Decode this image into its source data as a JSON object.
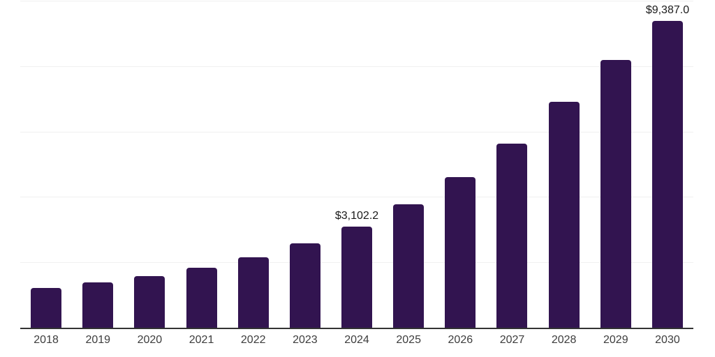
{
  "chart_data": {
    "type": "bar",
    "title": "",
    "xlabel": "",
    "ylabel": "",
    "categories": [
      "2018",
      "2019",
      "2020",
      "2021",
      "2022",
      "2023",
      "2024",
      "2025",
      "2026",
      "2027",
      "2028",
      "2029",
      "2030"
    ],
    "values": [
      1220,
      1383,
      1581,
      1836,
      2156,
      2575,
      3102.2,
      3767,
      4596,
      5631,
      6901,
      8178,
      9387
    ],
    "bar_labels": [
      "",
      "",
      "",
      "",
      "",
      "",
      "$3,102.2",
      "",
      "",
      "",
      "",
      "",
      "$9,387.0"
    ],
    "ylim": [
      0,
      10000
    ],
    "gridline_interval": 2000,
    "grid": "horizontal-only",
    "legend": "none",
    "y_axis_labels_visible": false,
    "colors": {
      "bar": "#321450",
      "axis_line": "#333333",
      "gridline": "#f0f0f0",
      "tick_label": "#3d3d3d",
      "data_label": "#1a1a1a",
      "background": "#ffffff"
    }
  }
}
